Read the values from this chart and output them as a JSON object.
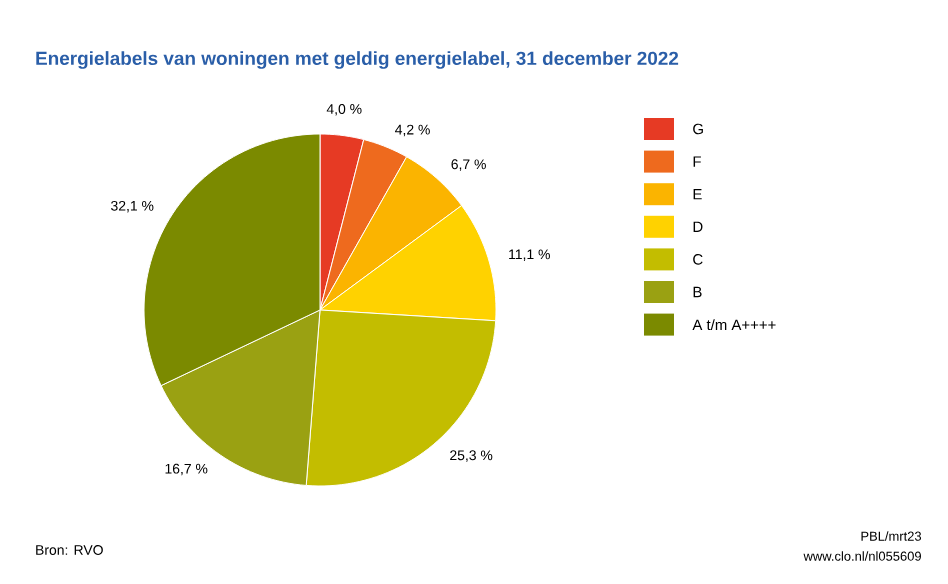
{
  "chart_data": {
    "type": "pie",
    "title": "Energielabels van woningen met geldig energielabel, 31 december 2022",
    "categories": [
      "G",
      "F",
      "E",
      "D",
      "C",
      "B",
      "A t/m A++++"
    ],
    "values": [
      4.0,
      4.2,
      6.7,
      11.1,
      25.3,
      16.7,
      32.1
    ],
    "value_labels": [
      "4,0 %",
      "4,2 %",
      "6,7 %",
      "11,1 %",
      "25,3 %",
      "16,7 %",
      "32,1 %"
    ],
    "colors": [
      "#e63a24",
      "#ee6a1e",
      "#fbb400",
      "#ffd200",
      "#c3bd00",
      "#9aa112",
      "#7b8a00"
    ],
    "legend": "right",
    "annotations": [
      "Bron: RVO",
      "PBL/mrt23",
      "www.clo.nl/nl055609"
    ]
  }
}
